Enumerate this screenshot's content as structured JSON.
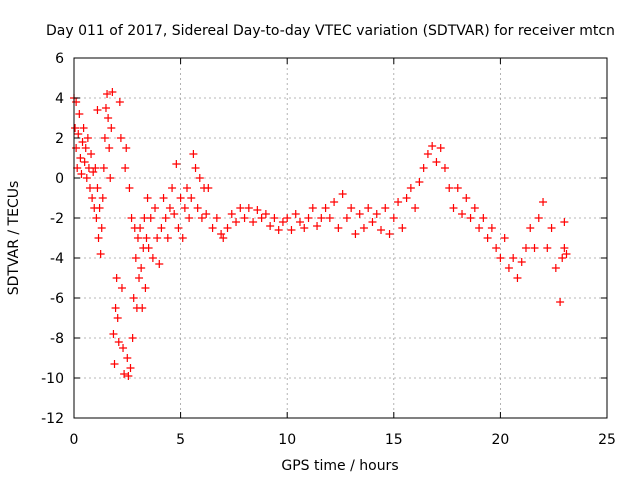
{
  "chart_data": {
    "type": "scatter",
    "title": "Day 011 of 2017, Sidereal Day-to-day VTEC variation (SDTVAR) for receiver mtcn",
    "xlabel": "GPS time / hours",
    "ylabel": "SDTVAR / TECUs",
    "xlim": [
      0,
      25
    ],
    "ylim": [
      -12,
      6
    ],
    "xticks": [
      0,
      5,
      10,
      15,
      20,
      25
    ],
    "yticks": [
      -12,
      -10,
      -8,
      -6,
      -4,
      -2,
      0,
      2,
      4,
      6
    ],
    "xtick_labels": [
      "0",
      "5",
      "10",
      "15",
      "20",
      "25"
    ],
    "ytick_labels": [
      "-12",
      "-10",
      "-8",
      "-6",
      "-4",
      "-2",
      "0",
      "2",
      "4",
      "6"
    ],
    "grid": true,
    "marker": "+",
    "color": "#ff0000",
    "series": [
      {
        "name": "SDTVAR",
        "points": [
          [
            0.0,
            4.0
          ],
          [
            0.05,
            2.5
          ],
          [
            0.1,
            1.5
          ],
          [
            0.1,
            3.8
          ],
          [
            0.15,
            0.5
          ],
          [
            0.2,
            2.2
          ],
          [
            0.25,
            3.2
          ],
          [
            0.3,
            1.0
          ],
          [
            0.35,
            0.2
          ],
          [
            0.4,
            1.8
          ],
          [
            0.45,
            2.5
          ],
          [
            0.5,
            0.8
          ],
          [
            0.55,
            1.5
          ],
          [
            0.6,
            0.0
          ],
          [
            0.65,
            2.0
          ],
          [
            0.7,
            0.5
          ],
          [
            0.75,
            -0.5
          ],
          [
            0.8,
            1.2
          ],
          [
            0.85,
            -1.0
          ],
          [
            0.9,
            0.3
          ],
          [
            0.95,
            -1.5
          ],
          [
            1.0,
            0.5
          ],
          [
            1.05,
            -2.0
          ],
          [
            1.1,
            -0.5
          ],
          [
            1.1,
            3.4
          ],
          [
            1.15,
            -3.0
          ],
          [
            1.2,
            -1.5
          ],
          [
            1.25,
            -3.8
          ],
          [
            1.3,
            -2.5
          ],
          [
            1.35,
            -1.0
          ],
          [
            1.4,
            0.5
          ],
          [
            1.45,
            2.0
          ],
          [
            1.5,
            3.5
          ],
          [
            1.55,
            4.2
          ],
          [
            1.6,
            3.0
          ],
          [
            1.65,
            1.5
          ],
          [
            1.7,
            0.0
          ],
          [
            1.75,
            2.5
          ],
          [
            1.8,
            4.3
          ],
          [
            1.85,
            -7.8
          ],
          [
            1.9,
            -9.3
          ],
          [
            1.95,
            -6.5
          ],
          [
            2.0,
            -5.0
          ],
          [
            2.05,
            -7.0
          ],
          [
            2.1,
            -8.2
          ],
          [
            2.15,
            3.8
          ],
          [
            2.2,
            2.0
          ],
          [
            2.25,
            -5.5
          ],
          [
            2.3,
            -8.5
          ],
          [
            2.35,
            -9.8
          ],
          [
            2.4,
            0.5
          ],
          [
            2.45,
            1.5
          ],
          [
            2.5,
            -9.0
          ],
          [
            2.55,
            -9.9
          ],
          [
            2.6,
            -0.5
          ],
          [
            2.65,
            -9.5
          ],
          [
            2.7,
            -2.0
          ],
          [
            2.75,
            -8.0
          ],
          [
            2.8,
            -6.0
          ],
          [
            2.85,
            -2.5
          ],
          [
            2.9,
            -4.0
          ],
          [
            2.95,
            -6.5
          ],
          [
            3.0,
            -3.0
          ],
          [
            3.05,
            -5.0
          ],
          [
            3.1,
            -2.5
          ],
          [
            3.15,
            -4.5
          ],
          [
            3.2,
            -6.5
          ],
          [
            3.25,
            -3.5
          ],
          [
            3.3,
            -2.0
          ],
          [
            3.35,
            -5.5
          ],
          [
            3.4,
            -3.0
          ],
          [
            3.45,
            -1.0
          ],
          [
            3.5,
            -3.5
          ],
          [
            3.6,
            -2.0
          ],
          [
            3.7,
            -4.0
          ],
          [
            3.8,
            -1.5
          ],
          [
            3.9,
            -3.0
          ],
          [
            4.0,
            -4.3
          ],
          [
            4.1,
            -2.5
          ],
          [
            4.2,
            -1.0
          ],
          [
            4.3,
            -2.0
          ],
          [
            4.4,
            -3.0
          ],
          [
            4.5,
            -1.5
          ],
          [
            4.6,
            -0.5
          ],
          [
            4.7,
            -1.8
          ],
          [
            4.8,
            0.7
          ],
          [
            4.9,
            -2.5
          ],
          [
            5.0,
            -1.0
          ],
          [
            5.1,
            -3.0
          ],
          [
            5.2,
            -1.5
          ],
          [
            5.3,
            -0.5
          ],
          [
            5.4,
            -2.0
          ],
          [
            5.5,
            -1.0
          ],
          [
            5.6,
            1.2
          ],
          [
            5.7,
            0.5
          ],
          [
            5.8,
            -1.5
          ],
          [
            5.9,
            0.0
          ],
          [
            6.0,
            -2.0
          ],
          [
            6.1,
            -0.5
          ],
          [
            6.2,
            -1.8
          ],
          [
            6.3,
            -0.5
          ],
          [
            6.5,
            -2.5
          ],
          [
            6.7,
            -2.0
          ],
          [
            6.9,
            -2.8
          ],
          [
            7.0,
            -3.0
          ],
          [
            7.2,
            -2.5
          ],
          [
            7.4,
            -1.8
          ],
          [
            7.6,
            -2.2
          ],
          [
            7.8,
            -1.5
          ],
          [
            8.0,
            -2.0
          ],
          [
            8.2,
            -1.5
          ],
          [
            8.4,
            -2.2
          ],
          [
            8.6,
            -1.6
          ],
          [
            8.8,
            -2.0
          ],
          [
            9.0,
            -1.8
          ],
          [
            9.2,
            -2.4
          ],
          [
            9.4,
            -2.0
          ],
          [
            9.6,
            -2.6
          ],
          [
            9.8,
            -2.2
          ],
          [
            10.0,
            -2.0
          ],
          [
            10.2,
            -2.6
          ],
          [
            10.4,
            -1.8
          ],
          [
            10.6,
            -2.2
          ],
          [
            10.8,
            -2.5
          ],
          [
            11.0,
            -2.0
          ],
          [
            11.2,
            -1.5
          ],
          [
            11.4,
            -2.4
          ],
          [
            11.6,
            -2.0
          ],
          [
            11.8,
            -1.5
          ],
          [
            12.0,
            -2.0
          ],
          [
            12.2,
            -1.2
          ],
          [
            12.4,
            -2.5
          ],
          [
            12.6,
            -0.8
          ],
          [
            12.8,
            -2.0
          ],
          [
            13.0,
            -1.5
          ],
          [
            13.2,
            -2.8
          ],
          [
            13.4,
            -1.8
          ],
          [
            13.6,
            -2.5
          ],
          [
            13.8,
            -1.5
          ],
          [
            14.0,
            -2.2
          ],
          [
            14.2,
            -1.8
          ],
          [
            14.4,
            -2.6
          ],
          [
            14.6,
            -1.5
          ],
          [
            14.8,
            -2.8
          ],
          [
            15.0,
            -2.0
          ],
          [
            15.2,
            -1.2
          ],
          [
            15.4,
            -2.5
          ],
          [
            15.6,
            -1.0
          ],
          [
            15.8,
            -0.5
          ],
          [
            16.0,
            -1.5
          ],
          [
            16.2,
            -0.2
          ],
          [
            16.4,
            0.5
          ],
          [
            16.6,
            1.2
          ],
          [
            16.8,
            1.6
          ],
          [
            17.0,
            0.8
          ],
          [
            17.2,
            1.5
          ],
          [
            17.4,
            0.5
          ],
          [
            17.6,
            -0.5
          ],
          [
            17.8,
            -1.5
          ],
          [
            18.0,
            -0.5
          ],
          [
            18.2,
            -1.8
          ],
          [
            18.4,
            -1.0
          ],
          [
            18.6,
            -2.0
          ],
          [
            18.8,
            -1.5
          ],
          [
            19.0,
            -2.5
          ],
          [
            19.2,
            -2.0
          ],
          [
            19.4,
            -3.0
          ],
          [
            19.6,
            -2.5
          ],
          [
            19.8,
            -3.5
          ],
          [
            20.0,
            -4.0
          ],
          [
            20.2,
            -3.0
          ],
          [
            20.4,
            -4.5
          ],
          [
            20.6,
            -4.0
          ],
          [
            20.8,
            -5.0
          ],
          [
            21.0,
            -4.2
          ],
          [
            21.2,
            -3.5
          ],
          [
            21.4,
            -2.5
          ],
          [
            21.6,
            -3.5
          ],
          [
            21.8,
            -2.0
          ],
          [
            22.0,
            -1.2
          ],
          [
            22.2,
            -3.5
          ],
          [
            22.4,
            -2.5
          ],
          [
            22.6,
            -4.5
          ],
          [
            22.8,
            -6.2
          ],
          [
            22.9,
            -4.0
          ],
          [
            23.0,
            -3.5
          ],
          [
            23.0,
            -2.2
          ],
          [
            23.1,
            -3.8
          ]
        ]
      }
    ]
  }
}
